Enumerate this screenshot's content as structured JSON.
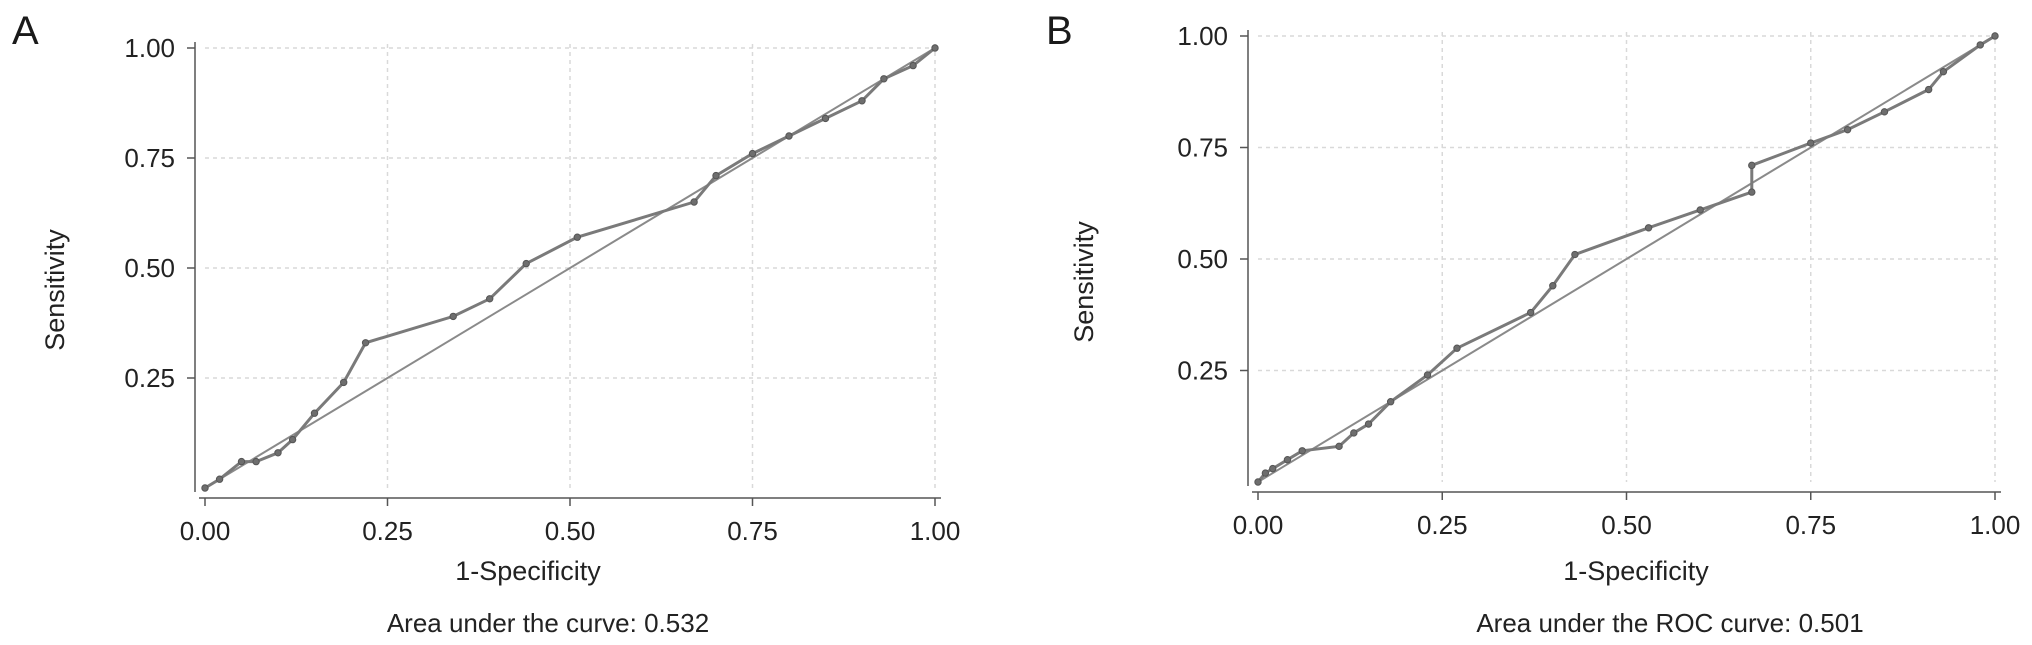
{
  "chart_data": [
    {
      "type": "line",
      "panel_label": "A",
      "xlabel": "1-Specificity",
      "ylabel": "Sensitivity",
      "caption": "Area under the curve: 0.532",
      "xlim": [
        0,
        1
      ],
      "ylim": [
        0,
        1
      ],
      "x_ticks": [
        "0.00",
        "0.25",
        "0.50",
        "0.75",
        "1.00"
      ],
      "y_ticks": [
        "0.25",
        "0.50",
        "0.75",
        "1.00"
      ],
      "grid": true,
      "series": [
        {
          "x": [
            0.0,
            0.02,
            0.05,
            0.07,
            0.1,
            0.12,
            0.15,
            0.19,
            0.22,
            0.34,
            0.39,
            0.44,
            0.51,
            0.67,
            0.7,
            0.75,
            0.8,
            0.85,
            0.9,
            0.93,
            0.97,
            1.0
          ],
          "y": [
            0.0,
            0.02,
            0.06,
            0.06,
            0.08,
            0.11,
            0.17,
            0.24,
            0.33,
            0.39,
            0.43,
            0.51,
            0.57,
            0.65,
            0.71,
            0.76,
            0.8,
            0.84,
            0.88,
            0.93,
            0.96,
            1.0
          ]
        },
        {
          "x": [
            0,
            1
          ],
          "y": [
            0,
            1
          ]
        }
      ]
    },
    {
      "type": "line",
      "panel_label": "B",
      "xlabel": "1-Specificity",
      "ylabel": "Sensitivity",
      "caption": "Area under the ROC curve: 0.501",
      "xlim": [
        0,
        1
      ],
      "ylim": [
        0,
        1
      ],
      "x_ticks": [
        "0.00",
        "0.25",
        "0.50",
        "0.75",
        "1.00"
      ],
      "y_ticks": [
        "0.25",
        "0.50",
        "0.75",
        "1.00"
      ],
      "grid": true,
      "series": [
        {
          "x": [
            0.0,
            0.01,
            0.02,
            0.04,
            0.06,
            0.11,
            0.13,
            0.15,
            0.18,
            0.23,
            0.27,
            0.37,
            0.4,
            0.43,
            0.53,
            0.6,
            0.67,
            0.67,
            0.75,
            0.8,
            0.85,
            0.91,
            0.93,
            0.98,
            1.0
          ],
          "y": [
            0.0,
            0.02,
            0.03,
            0.05,
            0.07,
            0.08,
            0.11,
            0.13,
            0.18,
            0.24,
            0.3,
            0.38,
            0.44,
            0.51,
            0.57,
            0.61,
            0.65,
            0.71,
            0.76,
            0.79,
            0.83,
            0.88,
            0.92,
            0.98,
            1.0
          ]
        },
        {
          "x": [
            0,
            1
          ],
          "y": [
            0,
            1
          ]
        }
      ]
    }
  ]
}
